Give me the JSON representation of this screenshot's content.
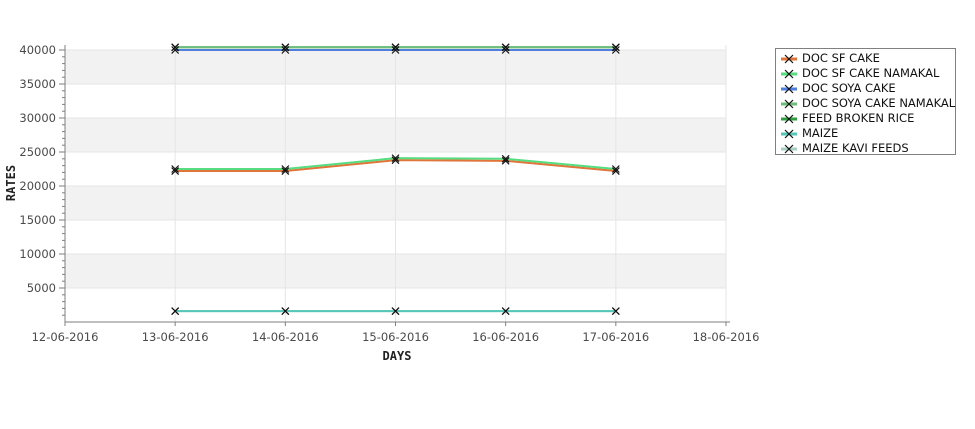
{
  "page": {
    "background": "#ffffff"
  },
  "chart_data": {
    "type": "line",
    "title": "",
    "xlabel": "DAYS",
    "ylabel": "RATES",
    "x_tick_labels": [
      "12-06-2016",
      "13-06-2016",
      "14-06-2016",
      "15-06-2016",
      "16-06-2016",
      "17-06-2016",
      "18-06-2016"
    ],
    "x": [
      "13-06-2016",
      "14-06-2016",
      "15-06-2016",
      "16-06-2016",
      "17-06-2016"
    ],
    "y_ticks": [
      5000,
      10000,
      15000,
      20000,
      25000,
      30000,
      35000,
      40000
    ],
    "y_minor_tick_step": 1000,
    "ylim": [
      0,
      40800
    ],
    "grid": true,
    "legend_position": "right",
    "plot_band_colors": [
      "#f2f2f2",
      "#ffffff"
    ],
    "gridline_color": "#e5e5e5",
    "axis_color": "#7f7f7f",
    "tick_label_color": "#4a4a4a",
    "marker_color": "#111111",
    "marker": "x",
    "series": [
      {
        "name": "DOC SF CAKE",
        "color": "#e0743a",
        "values": [
          22200,
          22200,
          23800,
          23700,
          22200
        ]
      },
      {
        "name": "DOC SF CAKE NAMAKAL",
        "color": "#55dd80",
        "values": [
          22500,
          22500,
          24100,
          24000,
          22500
        ]
      },
      {
        "name": "DOC SOYA CAKE",
        "color": "#4f7edd",
        "values": [
          40000,
          40000,
          40000,
          40000,
          40000
        ]
      },
      {
        "name": "DOC SOYA CAKE NAMAKAL",
        "color": "#6cbc7c",
        "values": [
          40400,
          40400,
          40400,
          40400,
          40400
        ]
      },
      {
        "name": "FEED BROKEN RICE",
        "color": "#2e9e40",
        "values": [
          40400,
          40400,
          40400,
          40400,
          40400
        ]
      },
      {
        "name": "MAIZE",
        "color": "#54c7b8",
        "values": [
          1600,
          1600,
          1600,
          1600,
          1600
        ]
      },
      {
        "name": "MAIZE KAVI FEEDS",
        "color": "#a9cfc2",
        "values": [
          1600,
          1600,
          1600,
          1600,
          1600
        ]
      }
    ],
    "draw_order": [
      "FEED BROKEN RICE",
      "MAIZE KAVI FEEDS",
      "DOC SF CAKE",
      "DOC SF CAKE NAMAKAL",
      "DOC SOYA CAKE",
      "DOC SOYA CAKE NAMAKAL",
      "MAIZE"
    ]
  }
}
